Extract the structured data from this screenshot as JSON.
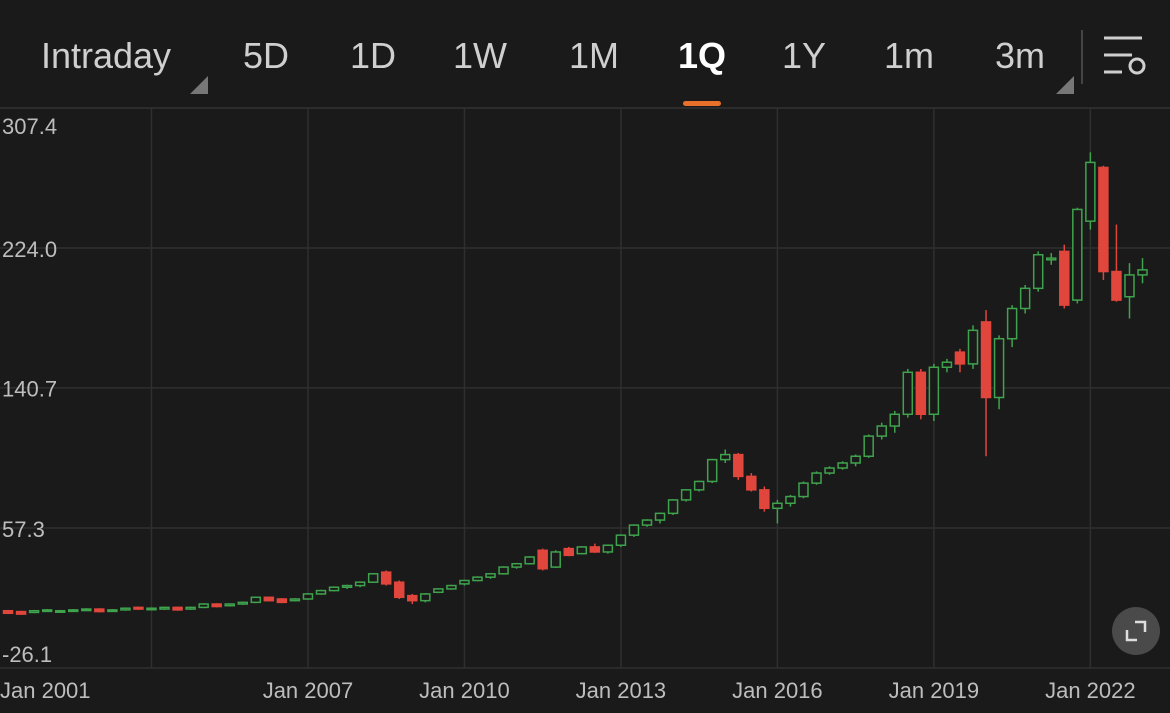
{
  "toolbar": {
    "tabs": [
      "Intraday",
      "5D",
      "1D",
      "1W",
      "1M",
      "1Q",
      "1Y",
      "1m",
      "3m"
    ],
    "active": 5
  },
  "chart_data": {
    "type": "candlestick",
    "x": [
      "2001-04",
      "2001-07",
      "2001-10",
      "2002-01",
      "2002-04",
      "2002-07",
      "2002-10",
      "2003-01",
      "2003-04",
      "2003-07",
      "2003-10",
      "2004-01",
      "2004-04",
      "2004-07",
      "2004-10",
      "2005-01",
      "2005-04",
      "2005-07",
      "2005-10",
      "2006-01",
      "2006-04",
      "2006-07",
      "2006-10",
      "2007-01",
      "2007-04",
      "2007-07",
      "2007-10",
      "2008-01",
      "2008-04",
      "2008-07",
      "2008-10",
      "2009-01",
      "2009-04",
      "2009-07",
      "2009-10",
      "2010-01",
      "2010-04",
      "2010-07",
      "2010-10",
      "2011-01",
      "2011-04",
      "2011-07",
      "2011-10",
      "2012-01",
      "2012-04",
      "2012-07",
      "2012-10",
      "2013-01",
      "2013-04",
      "2013-07",
      "2013-10",
      "2014-01",
      "2014-04",
      "2014-07",
      "2014-10",
      "2015-01",
      "2015-04",
      "2015-07",
      "2015-10",
      "2016-01",
      "2016-04",
      "2016-07",
      "2016-10",
      "2017-01",
      "2017-04",
      "2017-07",
      "2017-10",
      "2018-01",
      "2018-04",
      "2018-07",
      "2018-10",
      "2019-01",
      "2019-04",
      "2019-07",
      "2019-10",
      "2020-01",
      "2020-04",
      "2020-07",
      "2020-10",
      "2021-01",
      "2021-04",
      "2021-07",
      "2021-10",
      "2022-01",
      "2022-04",
      "2022-07",
      "2022-10",
      "2023-01"
    ],
    "open": [
      8,
      7.5,
      7,
      8,
      7.5,
      8,
      8.5,
      9,
      8,
      8.5,
      10,
      9,
      9,
      10,
      9,
      10,
      12,
      11,
      12,
      13,
      16,
      15,
      14,
      15,
      18,
      20,
      22,
      23,
      25,
      31,
      25,
      17,
      14,
      19,
      21,
      24,
      26,
      28,
      30,
      34,
      36,
      44,
      34,
      45,
      42,
      46,
      43,
      47,
      53,
      59,
      62,
      66,
      74,
      80,
      85,
      98,
      101,
      88,
      80,
      69,
      72,
      76,
      84,
      90,
      93,
      96,
      100,
      112,
      118,
      125,
      150,
      125,
      153,
      162,
      155,
      180,
      135,
      170,
      188,
      200,
      217,
      222,
      193,
      240,
      272,
      210,
      195,
      208
    ],
    "high": [
      8.5,
      8,
      8.5,
      9,
      8.5,
      9,
      9.5,
      9.5,
      9,
      10,
      10.5,
      10,
      10.5,
      10.5,
      10.5,
      12.5,
      12.5,
      12.5,
      13.5,
      16.5,
      16.5,
      15.5,
      15.5,
      18.5,
      20.5,
      22.5,
      23.5,
      25.5,
      30.5,
      32,
      26,
      18,
      18.5,
      21.5,
      23.5,
      26.5,
      28.5,
      30.5,
      34.5,
      36.5,
      40.5,
      45,
      44,
      46,
      46.5,
      48,
      47.5,
      53.5,
      59.5,
      62.5,
      66.5,
      74.5,
      80.5,
      85.5,
      98.5,
      104,
      102,
      90,
      82,
      74,
      77,
      85,
      91,
      94,
      97,
      101,
      113,
      120,
      127,
      152,
      152,
      155,
      158,
      164,
      178,
      187,
      172,
      190,
      202,
      222,
      221,
      226,
      248,
      281,
      273,
      238,
      215,
      218
    ],
    "low": [
      6,
      5.5,
      6.5,
      7.5,
      7,
      7.5,
      8,
      7,
      7.5,
      8,
      8.5,
      8.5,
      8.5,
      8,
      8.5,
      9.5,
      10,
      10.5,
      11.5,
      12.5,
      13.5,
      12.5,
      13.5,
      14.5,
      17.5,
      19.5,
      21,
      22,
      24.5,
      23,
      15,
      12,
      13,
      18.5,
      20.5,
      23,
      25.5,
      27,
      29.5,
      33,
      35.5,
      32,
      33.5,
      40.5,
      41.5,
      42.5,
      42,
      46,
      52,
      58,
      60,
      65,
      73,
      79,
      84,
      96,
      86,
      79,
      67,
      60,
      70,
      75,
      83,
      89,
      92,
      94,
      99,
      110,
      114,
      123,
      122,
      121,
      150,
      150,
      152,
      100,
      128,
      165,
      185,
      198,
      214,
      188,
      191,
      235,
      205,
      192,
      182,
      203
    ],
    "close": [
      6.5,
      6,
      8,
      8.5,
      8,
      8.5,
      9,
      7.5,
      8.5,
      9.5,
      9,
      9.5,
      10,
      8.5,
      10,
      12,
      10.5,
      12,
      13,
      16,
      14,
      13,
      15,
      18,
      20,
      22,
      23,
      25,
      30,
      24,
      16,
      14,
      18,
      21,
      23,
      26,
      28,
      30,
      34,
      36,
      40,
      33,
      43,
      41,
      46,
      43,
      47,
      53,
      59,
      62,
      66,
      74,
      80,
      85,
      98,
      101,
      88,
      80,
      69,
      72,
      76,
      84,
      90,
      93,
      96,
      100,
      112,
      118,
      125,
      150,
      125,
      153,
      156,
      155,
      175,
      135,
      170,
      188,
      200,
      220,
      218,
      190,
      247,
      275,
      210,
      193,
      208,
      211
    ],
    "up_color": "#3fa34d",
    "down_color": "#e0463c",
    "ylim": [
      -26.1,
      307.4
    ],
    "yticks": [
      -26.1,
      57.3,
      140.7,
      224.0,
      307.4
    ],
    "xticks": [
      {
        "value": "2001-01",
        "label": "Jan 2001"
      },
      {
        "value": "2004-01",
        "label": null
      },
      {
        "value": "2007-01",
        "label": "Jan 2007"
      },
      {
        "value": "2010-01",
        "label": "Jan 2010"
      },
      {
        "value": "2013-01",
        "label": "Jan 2013"
      },
      {
        "value": "2016-01",
        "label": "Jan 2016"
      },
      {
        "value": "2019-01",
        "label": "Jan 2019"
      },
      {
        "value": "2022-01",
        "label": "Jan 2022"
      }
    ],
    "grid": true
  }
}
